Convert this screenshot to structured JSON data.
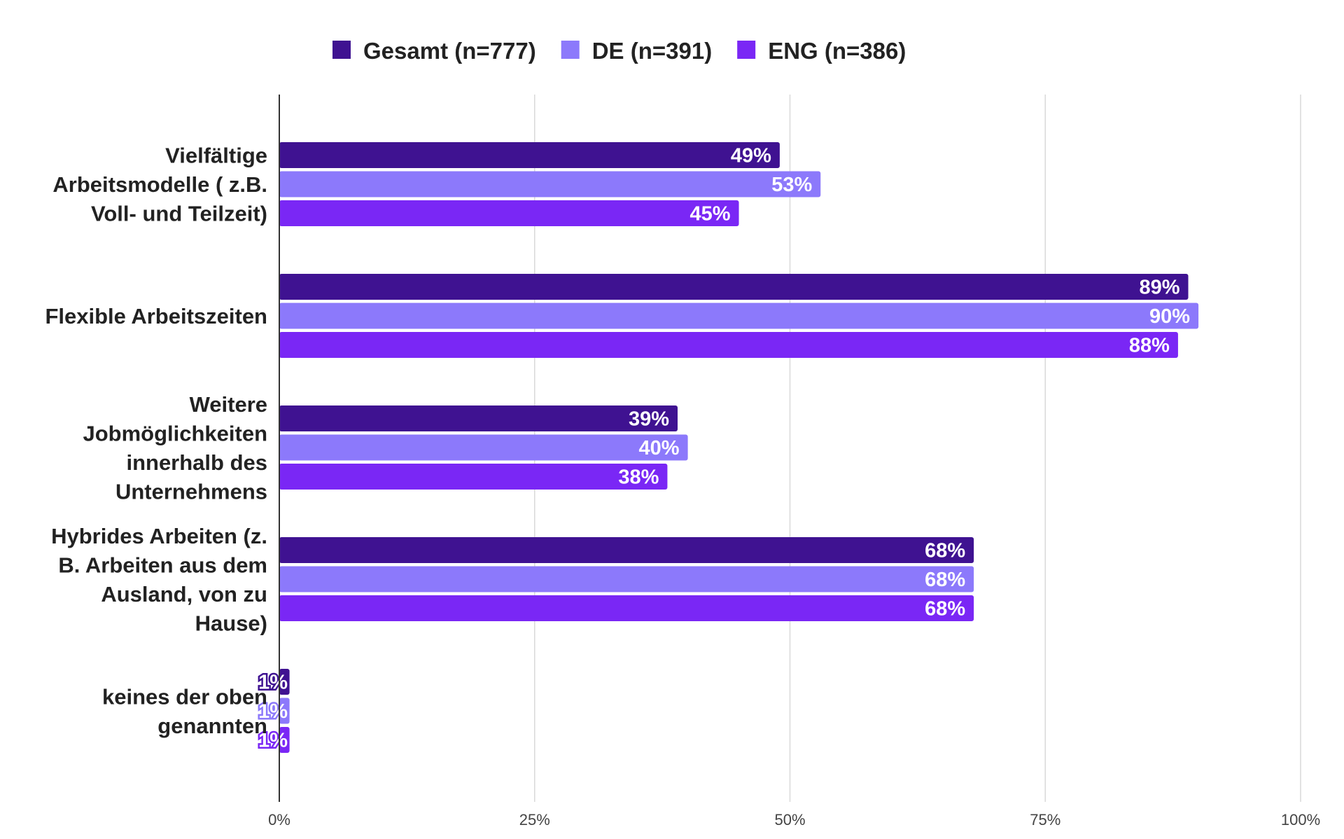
{
  "chart_data": {
    "type": "bar",
    "orientation": "horizontal",
    "categories": [
      "Vielfältige Arbeitsmodelle ( z.B. Voll- und Teilzeit)",
      "Flexible Arbeitszeiten",
      "Weitere Jobmöglichkeiten innerhalb des Unternehmens",
      "Hybrides Arbeiten (z. B. Arbeiten aus dem Ausland, von zu Hause)",
      "keines der oben genannten"
    ],
    "category_lines": [
      [
        "Vielfältige",
        "Arbeitsmodelle ( z.B.",
        "Voll- und Teilzeit)"
      ],
      [
        "Flexible Arbeitszeiten"
      ],
      [
        "Weitere",
        "Jobmöglichkeiten",
        "innerhalb des",
        "Unternehmens"
      ],
      [
        "Hybrides Arbeiten (z.",
        "B. Arbeiten aus dem",
        "Ausland, von zu",
        "Hause)"
      ],
      [
        "keines der oben",
        "genannten"
      ]
    ],
    "series": [
      {
        "name": "Gesamt (n=777)",
        "color": "#3f1291",
        "values": [
          49,
          89,
          39,
          68,
          1
        ]
      },
      {
        "name": "DE (n=391)",
        "color": "#8c79fb",
        "values": [
          53,
          90,
          40,
          68,
          1
        ]
      },
      {
        "name": "ENG (n=386)",
        "color": "#7a27f5",
        "values": [
          45,
          88,
          38,
          68,
          1
        ]
      }
    ],
    "xlim": [
      0,
      100
    ],
    "xticks": [
      "0%",
      "25%",
      "50%",
      "75%",
      "100%"
    ],
    "value_format": "percent",
    "grid": true,
    "legend": "top"
  }
}
